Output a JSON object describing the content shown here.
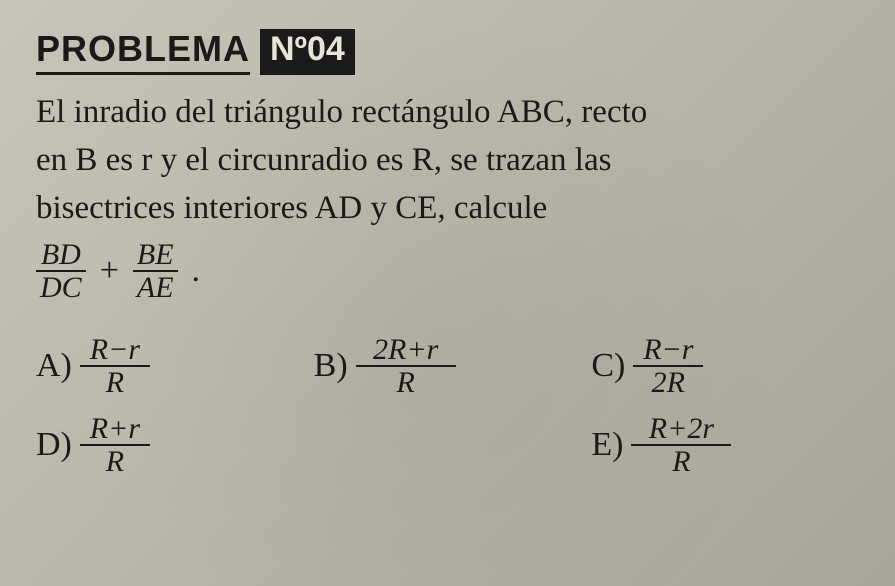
{
  "header": {
    "label": "PROBLEMA",
    "badge": "Nº04"
  },
  "problem": {
    "line1": "El inradio del triángulo rectángulo ABC, recto",
    "line2": "en B es r y el circunradio es R, se trazan las",
    "line3": "bisectrices interiores AD y CE, calcule"
  },
  "expression": {
    "frac1_num": "BD",
    "frac1_den": "DC",
    "plus": "+",
    "frac2_num": "BE",
    "frac2_den": "AE",
    "dot": "."
  },
  "options": {
    "a": {
      "label": "A)",
      "num": "R−r",
      "den": "R"
    },
    "b": {
      "label": "B)",
      "num": "2R+r",
      "den": "R"
    },
    "c": {
      "label": "C)",
      "num": "R−r",
      "den": "2R"
    },
    "d": {
      "label": "D)",
      "num": "R+r",
      "den": "R"
    },
    "e": {
      "label": "E)",
      "num": "R+2r",
      "den": "R"
    }
  },
  "colors": {
    "text": "#1a1a1a",
    "badge_bg": "#1a1a1a",
    "badge_fg": "#e8e4d8",
    "paper": "#b8b4a8"
  }
}
